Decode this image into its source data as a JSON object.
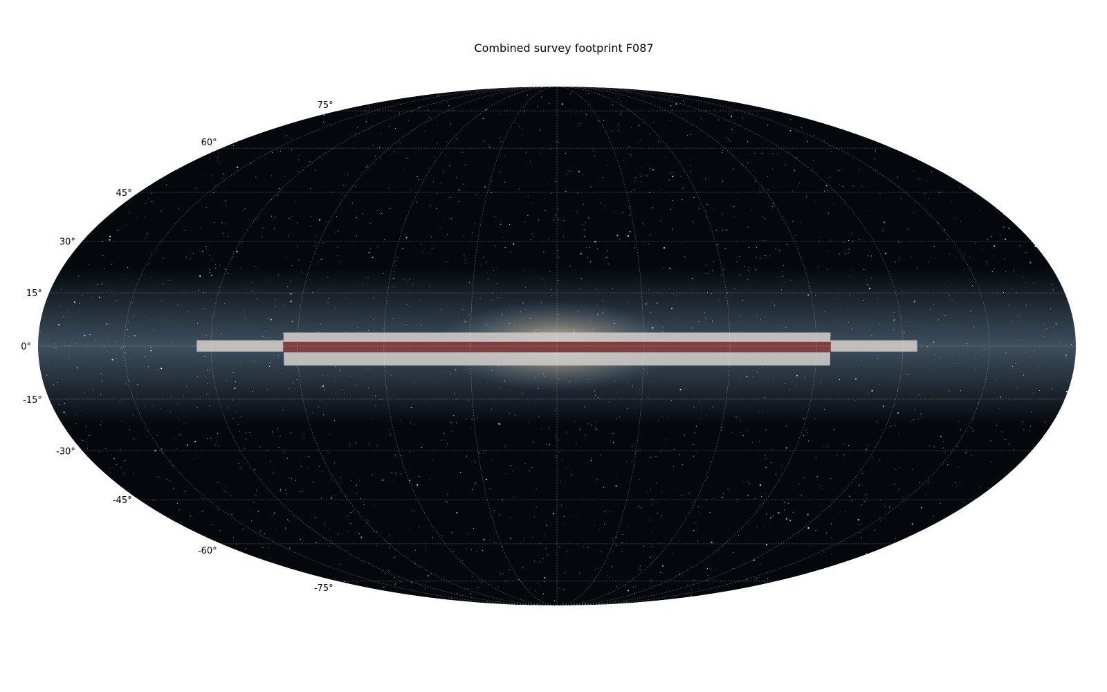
{
  "title": "Combined survey footprint F087",
  "projection": "mollweide",
  "graticule": {
    "latitudes_deg": [
      -75,
      -60,
      -45,
      -30,
      -15,
      0,
      15,
      30,
      45,
      60,
      75
    ],
    "longitudes_deg": [
      -150,
      -120,
      -90,
      -60,
      -30,
      0,
      30,
      60,
      90,
      120,
      150
    ]
  },
  "lat_labels": [
    {
      "lat": 75,
      "text": "75°"
    },
    {
      "lat": 60,
      "text": "60°"
    },
    {
      "lat": 45,
      "text": "45°"
    },
    {
      "lat": 30,
      "text": "30°"
    },
    {
      "lat": 15,
      "text": "15°"
    },
    {
      "lat": 0,
      "text": "0°"
    },
    {
      "lat": -15,
      "text": "-15°"
    },
    {
      "lat": -30,
      "text": "-30°"
    },
    {
      "lat": -45,
      "text": "-45°"
    },
    {
      "lat": -60,
      "text": "-60°"
    },
    {
      "lat": -75,
      "text": "-75°"
    }
  ],
  "colors": {
    "sky_background": "#04070b",
    "milky_way_band": "#6d8aa3",
    "galactic_center_glow": "#f2e6d6",
    "wide_footprint": "#c8c6c4",
    "core_footprint": "#6e1e22",
    "grid": "#ffffff"
  },
  "footprints": [
    {
      "name": "wide",
      "color": "#c8c6c4",
      "opacity": 0.93,
      "regions": [
        {
          "lon": [
            -95,
            95
          ],
          "lat": [
            -5.5,
            3.8
          ]
        },
        {
          "lon": [
            -125,
            125
          ],
          "lat": [
            -1.6,
            1.6
          ]
        }
      ]
    },
    {
      "name": "core",
      "color": "#6e1e22",
      "opacity": 0.8,
      "regions": [
        {
          "lon": [
            -95,
            95
          ],
          "lat": [
            -1.8,
            1.2
          ]
        }
      ]
    }
  ]
}
